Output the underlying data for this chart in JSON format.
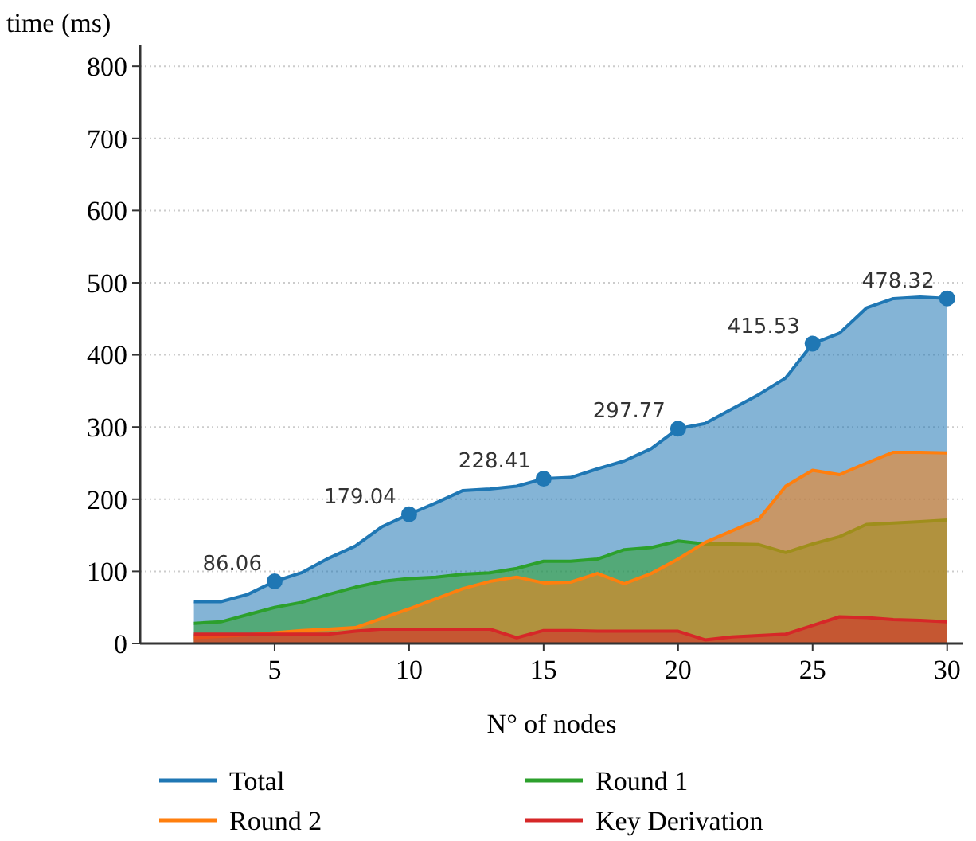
{
  "chart_data": {
    "type": "area",
    "xlabel": "N° of nodes",
    "ylabel": "time (ms)",
    "xlim": [
      0,
      30.6
    ],
    "xticks": [
      5,
      10,
      15,
      20,
      25,
      30
    ],
    "ylim": [
      0,
      830
    ],
    "yticks": [
      0,
      100,
      200,
      300,
      400,
      500,
      600,
      700,
      800
    ],
    "grid": "y",
    "legend": "bottom",
    "x": [
      2,
      3,
      4,
      5,
      6,
      7,
      8,
      9,
      10,
      11,
      12,
      13,
      14,
      15,
      16,
      17,
      18,
      19,
      20,
      21,
      22,
      23,
      24,
      25,
      26,
      27,
      28,
      29,
      30
    ],
    "series": [
      {
        "name": "Total",
        "color": "#1f77b4",
        "values": [
          58,
          58,
          68,
          86.06,
          98,
          118,
          135,
          162,
          179.04,
          195,
          212,
          214,
          218,
          228.41,
          230,
          242,
          253,
          270,
          297.77,
          305,
          325,
          345,
          368,
          415.53,
          430,
          465,
          478,
          480,
          478.32
        ]
      },
      {
        "name": "Round 1",
        "color": "#2ca02c",
        "values": [
          28,
          30,
          40,
          50,
          57,
          68,
          78,
          86,
          90,
          92,
          96,
          98,
          104,
          114,
          114,
          117,
          130,
          133,
          142,
          138,
          138,
          137,
          126,
          138,
          148,
          165,
          167,
          169,
          171
        ]
      },
      {
        "name": "Round 2",
        "color": "#ff7f0e",
        "values": [
          8,
          10,
          12,
          15,
          18,
          20,
          22,
          35,
          48,
          62,
          76,
          86,
          92,
          84,
          85,
          97,
          83,
          97,
          117,
          140,
          156,
          172,
          218,
          240,
          234,
          250,
          265,
          265,
          264
        ]
      },
      {
        "name": "Key Derivation",
        "color": "#d62728",
        "values": [
          13,
          13,
          13,
          13,
          13,
          13,
          17,
          20,
          20,
          20,
          20,
          20,
          8,
          18,
          18,
          17,
          17,
          17,
          17,
          5,
          9,
          11,
          13,
          25,
          37,
          36,
          33,
          32,
          30
        ]
      },
      {
        "type": "scatter",
        "color": "#1f77b4",
        "marker": "circle",
        "x": [
          5,
          10,
          15,
          20,
          25,
          30
        ],
        "values": [
          86.06,
          179.04,
          228.41,
          297.77,
          415.53,
          478.32
        ],
        "value_labels": [
          "86.06",
          "179.04",
          "228.41",
          "297.77",
          "415.53",
          "478.32"
        ]
      }
    ]
  }
}
